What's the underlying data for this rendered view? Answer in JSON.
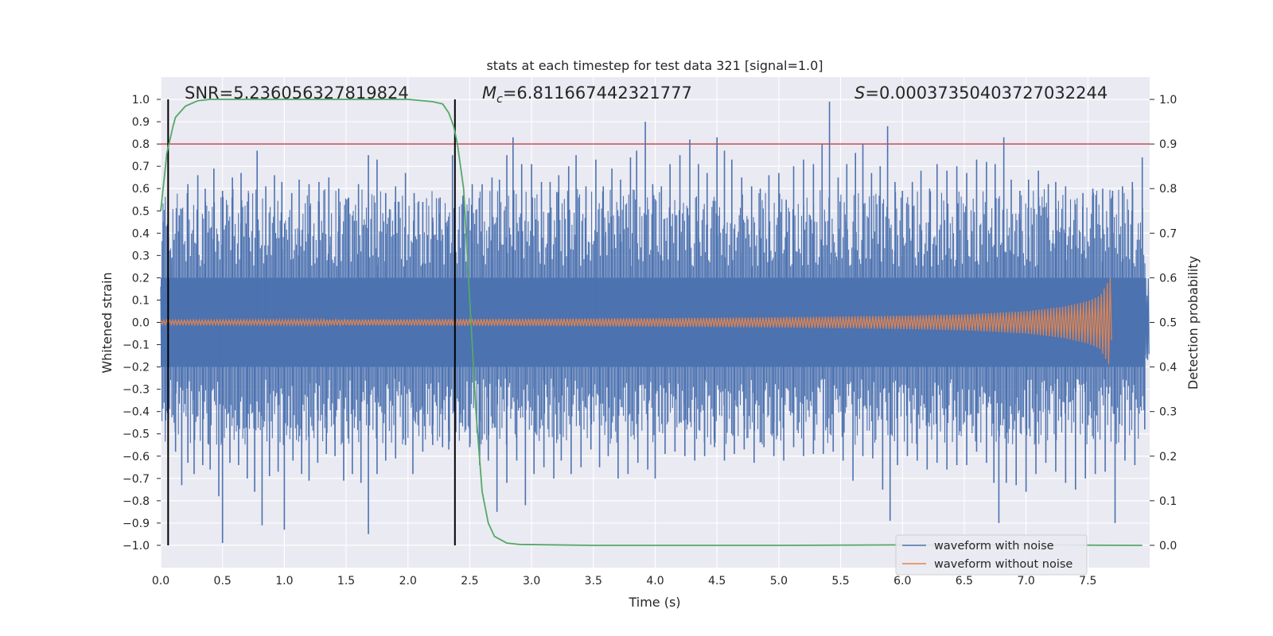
{
  "chart_data": {
    "type": "line",
    "title": "stats at each timestep for test data 321 [signal=1.0]",
    "xlabel": "Time (s)",
    "ylabel": "Whitened strain",
    "ylabel_right": "Detection probability",
    "xlim": [
      0.0,
      8.0
    ],
    "ylim": [
      -1.1,
      1.1
    ],
    "ylim_right": [
      -0.05,
      1.05
    ],
    "xticks": [
      "0.0",
      "0.5",
      "1.0",
      "1.5",
      "2.0",
      "2.5",
      "3.0",
      "3.5",
      "4.0",
      "4.5",
      "5.0",
      "5.5",
      "6.0",
      "6.5",
      "7.0",
      "7.5"
    ],
    "yticks": [
      "1.0",
      "0.9",
      "0.8",
      "0.7",
      "0.6",
      "0.5",
      "0.4",
      "0.3",
      "0.2",
      "0.1",
      "0.0",
      "−0.1",
      "−0.2",
      "−0.3",
      "−0.4",
      "−0.5",
      "−0.6",
      "−0.7",
      "−0.8",
      "−0.9",
      "−1.0"
    ],
    "yticks_right": [
      "1.0",
      "0.9",
      "0.8",
      "0.7",
      "0.6",
      "0.5",
      "0.4",
      "0.3",
      "0.2",
      "0.1",
      "0.0"
    ],
    "annotations": {
      "snr": "SNR=5.236056327819824",
      "mc_symbol": "M",
      "mc_sub": "c",
      "mc_value": "=6.811667442321777",
      "s_symbol": "S",
      "s_value": "=0.00037350403727032244"
    },
    "threshold": {
      "value": 0.9,
      "axis": "right",
      "color": "#c44e52"
    },
    "vlines": [
      0.06,
      2.38
    ],
    "series": [
      {
        "name": "waveform with noise",
        "color": "#4c72b0",
        "description": "noisy whitened strain, dense oscillation around 0 between about -1.0 and 1.0",
        "band": [
          -0.2,
          0.2
        ],
        "spikes_up": [
          [
            0.02,
            0.45
          ],
          [
            0.09,
            0.29
          ],
          [
            0.15,
            0.48
          ],
          [
            0.22,
            0.62
          ],
          [
            0.3,
            0.66
          ],
          [
            0.36,
            0.6
          ],
          [
            0.43,
            0.69
          ],
          [
            0.5,
            0.59
          ],
          [
            0.58,
            0.65
          ],
          [
            0.65,
            0.67
          ],
          [
            0.71,
            0.58
          ],
          [
            0.78,
            0.77
          ],
          [
            0.85,
            0.61
          ],
          [
            0.92,
            0.66
          ],
          [
            0.98,
            0.63
          ],
          [
            1.06,
            0.58
          ],
          [
            1.12,
            0.64
          ],
          [
            1.2,
            0.62
          ],
          [
            1.28,
            0.63
          ],
          [
            1.36,
            0.65
          ],
          [
            1.44,
            0.6
          ],
          [
            1.52,
            0.56
          ],
          [
            1.6,
            0.62
          ],
          [
            1.68,
            0.75
          ],
          [
            1.75,
            0.73
          ],
          [
            1.82,
            0.58
          ],
          [
            1.9,
            0.61
          ],
          [
            1.98,
            0.67
          ],
          [
            2.05,
            0.58
          ],
          [
            2.12,
            0.54
          ],
          [
            2.2,
            0.47
          ],
          [
            2.26,
            0.56
          ],
          [
            2.32,
            0.43
          ],
          [
            2.36,
            0.75
          ],
          [
            2.45,
            0.57
          ],
          [
            2.52,
            0.62
          ],
          [
            2.6,
            0.62
          ],
          [
            2.68,
            0.65
          ],
          [
            2.74,
            0.64
          ],
          [
            2.8,
            0.75
          ],
          [
            2.85,
            0.83
          ],
          [
            2.92,
            0.71
          ],
          [
            3.0,
            0.71
          ],
          [
            3.08,
            0.63
          ],
          [
            3.15,
            0.63
          ],
          [
            3.22,
            0.66
          ],
          [
            3.3,
            0.7
          ],
          [
            3.36,
            0.75
          ],
          [
            3.44,
            0.61
          ],
          [
            3.52,
            0.73
          ],
          [
            3.58,
            0.61
          ],
          [
            3.65,
            0.69
          ],
          [
            3.72,
            0.64
          ],
          [
            3.8,
            0.74
          ],
          [
            3.85,
            0.77
          ],
          [
            3.92,
            0.9
          ],
          [
            3.98,
            0.62
          ],
          [
            4.05,
            0.61
          ],
          [
            4.12,
            0.71
          ],
          [
            4.2,
            0.75
          ],
          [
            4.28,
            0.82
          ],
          [
            4.35,
            0.71
          ],
          [
            4.42,
            0.67
          ],
          [
            4.5,
            0.83
          ],
          [
            4.56,
            0.77
          ],
          [
            4.62,
            0.73
          ],
          [
            4.7,
            0.65
          ],
          [
            4.78,
            0.61
          ],
          [
            4.85,
            0.6
          ],
          [
            4.92,
            0.66
          ],
          [
            5.0,
            0.67
          ],
          [
            5.06,
            0.55
          ],
          [
            5.12,
            0.7
          ],
          [
            5.2,
            0.73
          ],
          [
            5.28,
            0.71
          ],
          [
            5.35,
            0.8
          ],
          [
            5.41,
            0.99
          ],
          [
            5.48,
            0.65
          ],
          [
            5.55,
            0.71
          ],
          [
            5.62,
            0.76
          ],
          [
            5.68,
            0.8
          ],
          [
            5.75,
            0.67
          ],
          [
            5.82,
            0.7
          ],
          [
            5.88,
            0.88
          ],
          [
            5.94,
            0.63
          ],
          [
            6.0,
            0.59
          ],
          [
            6.08,
            0.63
          ],
          [
            6.15,
            0.68
          ],
          [
            6.22,
            0.6
          ],
          [
            6.28,
            0.71
          ],
          [
            6.36,
            0.68
          ],
          [
            6.44,
            0.7
          ],
          [
            6.52,
            0.67
          ],
          [
            6.6,
            0.73
          ],
          [
            6.68,
            0.72
          ],
          [
            6.75,
            0.71
          ],
          [
            6.82,
            0.83
          ],
          [
            6.88,
            0.64
          ],
          [
            6.95,
            0.59
          ],
          [
            7.02,
            0.64
          ],
          [
            7.1,
            0.68
          ],
          [
            7.18,
            0.62
          ],
          [
            7.24,
            0.63
          ],
          [
            7.32,
            0.61
          ],
          [
            7.4,
            0.53
          ],
          [
            7.46,
            0.58
          ],
          [
            7.54,
            0.6
          ],
          [
            7.62,
            0.6
          ],
          [
            7.7,
            0.59
          ],
          [
            7.78,
            0.61
          ],
          [
            7.86,
            0.63
          ],
          [
            7.94,
            0.74
          ]
        ],
        "spikes_down": [
          [
            0.04,
            -0.44
          ],
          [
            0.12,
            -0.58
          ],
          [
            0.17,
            -0.73
          ],
          [
            0.22,
            -0.63
          ],
          [
            0.27,
            -0.68
          ],
          [
            0.34,
            -0.64
          ],
          [
            0.4,
            -0.66
          ],
          [
            0.47,
            -0.78
          ],
          [
            0.5,
            -0.99
          ],
          [
            0.56,
            -0.63
          ],
          [
            0.63,
            -0.64
          ],
          [
            0.7,
            -0.7
          ],
          [
            0.76,
            -0.76
          ],
          [
            0.82,
            -0.91
          ],
          [
            0.88,
            -0.69
          ],
          [
            0.95,
            -0.67
          ],
          [
            1.0,
            -0.93
          ],
          [
            1.07,
            -0.62
          ],
          [
            1.14,
            -0.68
          ],
          [
            1.2,
            -0.71
          ],
          [
            1.27,
            -0.63
          ],
          [
            1.34,
            -0.59
          ],
          [
            1.41,
            -0.6
          ],
          [
            1.48,
            -0.71
          ],
          [
            1.55,
            -0.68
          ],
          [
            1.62,
            -0.72
          ],
          [
            1.68,
            -0.95
          ],
          [
            1.75,
            -0.68
          ],
          [
            1.82,
            -0.62
          ],
          [
            1.9,
            -0.61
          ],
          [
            1.98,
            -0.55
          ],
          [
            2.04,
            -0.68
          ],
          [
            2.12,
            -0.58
          ],
          [
            2.2,
            -0.55
          ],
          [
            2.28,
            -0.56
          ],
          [
            2.33,
            -0.57
          ],
          [
            2.42,
            -0.45
          ],
          [
            2.5,
            -0.56
          ],
          [
            2.58,
            -0.64
          ],
          [
            2.65,
            -0.62
          ],
          [
            2.72,
            -0.85
          ],
          [
            2.8,
            -0.72
          ],
          [
            2.88,
            -0.62
          ],
          [
            2.95,
            -0.82
          ],
          [
            3.02,
            -0.68
          ],
          [
            3.1,
            -0.65
          ],
          [
            3.18,
            -0.7
          ],
          [
            3.24,
            -0.62
          ],
          [
            3.32,
            -0.68
          ],
          [
            3.4,
            -0.65
          ],
          [
            3.48,
            -0.57
          ],
          [
            3.55,
            -0.65
          ],
          [
            3.62,
            -0.6
          ],
          [
            3.7,
            -0.7
          ],
          [
            3.78,
            -0.68
          ],
          [
            3.86,
            -0.63
          ],
          [
            3.94,
            -0.66
          ],
          [
            4.0,
            -0.7
          ],
          [
            4.08,
            -0.59
          ],
          [
            4.16,
            -0.58
          ],
          [
            4.24,
            -0.6
          ],
          [
            4.32,
            -0.62
          ],
          [
            4.4,
            -0.6
          ],
          [
            4.48,
            -0.56
          ],
          [
            4.56,
            -0.62
          ],
          [
            4.64,
            -0.59
          ],
          [
            4.72,
            -0.57
          ],
          [
            4.8,
            -0.63
          ],
          [
            4.88,
            -0.56
          ],
          [
            4.96,
            -0.6
          ],
          [
            5.04,
            -0.62
          ],
          [
            5.12,
            -0.56
          ],
          [
            5.2,
            -0.6
          ],
          [
            5.28,
            -0.59
          ],
          [
            5.36,
            -0.59
          ],
          [
            5.44,
            -0.58
          ],
          [
            5.52,
            -0.62
          ],
          [
            5.6,
            -0.71
          ],
          [
            5.68,
            -0.6
          ],
          [
            5.76,
            -0.61
          ],
          [
            5.84,
            -0.75
          ],
          [
            5.9,
            -0.89
          ],
          [
            5.96,
            -0.64
          ],
          [
            6.04,
            -0.6
          ],
          [
            6.12,
            -0.62
          ],
          [
            6.2,
            -0.66
          ],
          [
            6.28,
            -0.63
          ],
          [
            6.36,
            -0.66
          ],
          [
            6.44,
            -0.64
          ],
          [
            6.52,
            -0.64
          ],
          [
            6.6,
            -0.58
          ],
          [
            6.68,
            -0.63
          ],
          [
            6.74,
            -0.72
          ],
          [
            6.78,
            -0.9
          ],
          [
            6.84,
            -0.72
          ],
          [
            6.92,
            -0.73
          ],
          [
            7.0,
            -0.76
          ],
          [
            7.08,
            -0.68
          ],
          [
            7.16,
            -0.63
          ],
          [
            7.24,
            -0.67
          ],
          [
            7.32,
            -0.72
          ],
          [
            7.4,
            -0.75
          ],
          [
            7.48,
            -0.7
          ],
          [
            7.56,
            -0.68
          ],
          [
            7.64,
            -0.67
          ],
          [
            7.72,
            -0.9
          ],
          [
            7.8,
            -0.62
          ],
          [
            7.88,
            -0.64
          ],
          [
            7.96,
            -0.48
          ]
        ]
      },
      {
        "name": "waveform without noise",
        "color": "#dd8452",
        "description": "chirp signal: small oscillation growing in amplitude, ending near t=7.7 s",
        "envelope": [
          [
            0.0,
            0.01
          ],
          [
            1.0,
            0.012
          ],
          [
            2.0,
            0.014
          ],
          [
            3.0,
            0.016
          ],
          [
            4.0,
            0.019
          ],
          [
            5.0,
            0.023
          ],
          [
            6.0,
            0.03
          ],
          [
            6.5,
            0.036
          ],
          [
            7.0,
            0.05
          ],
          [
            7.3,
            0.07
          ],
          [
            7.5,
            0.095
          ],
          [
            7.6,
            0.12
          ],
          [
            7.68,
            0.2
          ],
          [
            7.7,
            0.0
          ]
        ]
      },
      {
        "name": "detection probability",
        "color": "#55a868",
        "axis": "right",
        "x": [
          0.0,
          0.05,
          0.1,
          0.12,
          0.2,
          0.3,
          0.4,
          0.6,
          1.0,
          1.5,
          2.0,
          2.2,
          2.28,
          2.33,
          2.37,
          2.4,
          2.45,
          2.48,
          2.51,
          2.55,
          2.6,
          2.65,
          2.7,
          2.8,
          2.9,
          3.5,
          5.0,
          6.0,
          7.0,
          7.94
        ],
        "values": [
          0.75,
          0.88,
          0.94,
          0.96,
          0.985,
          0.997,
          1.0,
          1.0,
          1.0,
          1.0,
          1.0,
          0.995,
          0.99,
          0.97,
          0.94,
          0.9,
          0.8,
          0.65,
          0.5,
          0.3,
          0.12,
          0.05,
          0.02,
          0.005,
          0.002,
          0.0,
          0.0,
          0.001,
          0.001,
          0.0
        ]
      }
    ],
    "legend": {
      "placement": "bottom-right",
      "entries": [
        "waveform with noise",
        "waveform without noise"
      ]
    }
  }
}
